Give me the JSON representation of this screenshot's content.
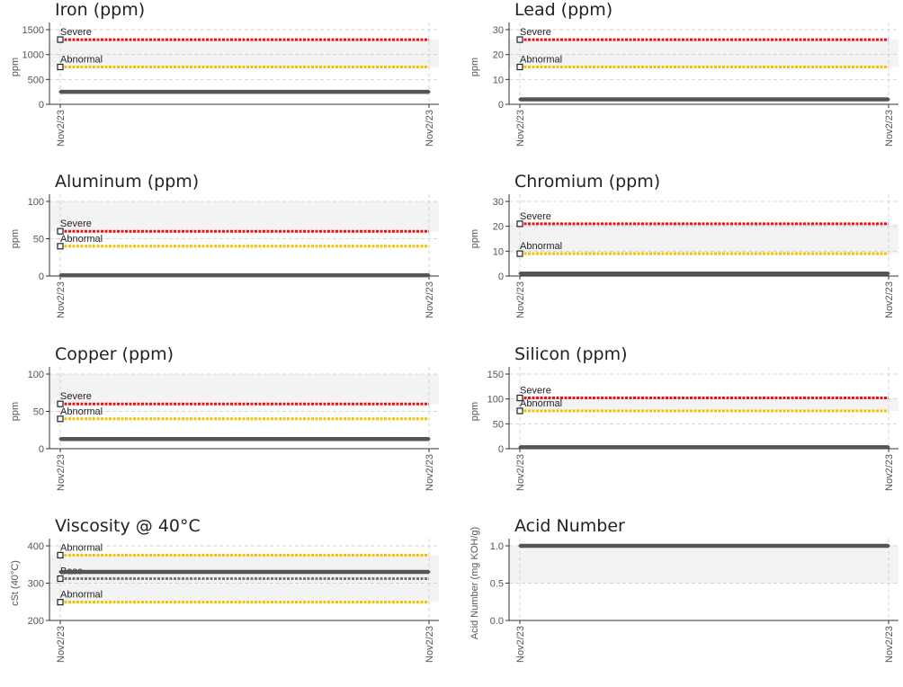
{
  "colors": {
    "severe": "#ee1111",
    "abnormal": "#f2c200",
    "base": "#777777",
    "data": "#555555",
    "band": "#f3f3f3"
  },
  "chart_data": [
    {
      "type": "line",
      "title": "Iron (ppm)",
      "ylabel": "ppm",
      "ylim": [
        0,
        1500
      ],
      "yticks": [
        "0",
        "500",
        "1000",
        "1500"
      ],
      "ytick_values": [
        0,
        500,
        1000,
        1500
      ],
      "x": [
        "Nov2/23",
        "Nov2/23"
      ],
      "series": [
        {
          "values": [
            250,
            250
          ]
        }
      ],
      "limits": [
        {
          "label": "Severe",
          "value": 1300,
          "kind": "severe"
        },
        {
          "label": "Abnormal",
          "value": 750,
          "kind": "abnormal"
        }
      ],
      "band": [
        750,
        1300
      ]
    },
    {
      "type": "line",
      "title": "Lead (ppm)",
      "ylabel": "ppm",
      "ylim": [
        0,
        30
      ],
      "yticks": [
        "0",
        "10",
        "20",
        "30"
      ],
      "ytick_values": [
        0,
        10,
        20,
        30
      ],
      "x": [
        "Nov2/23",
        "Nov2/23"
      ],
      "series": [
        {
          "values": [
            2,
            2
          ]
        }
      ],
      "limits": [
        {
          "label": "Severe",
          "value": 26,
          "kind": "severe"
        },
        {
          "label": "Abnormal",
          "value": 15,
          "kind": "abnormal"
        }
      ],
      "band": [
        15,
        26
      ]
    },
    {
      "type": "line",
      "title": "Aluminum (ppm)",
      "ylabel": "ppm",
      "ylim": [
        0,
        100
      ],
      "yticks": [
        "0",
        "50",
        "100"
      ],
      "ytick_values": [
        0,
        50,
        100
      ],
      "x": [
        "Nov2/23",
        "Nov2/23"
      ],
      "series": [
        {
          "values": [
            1,
            1
          ]
        }
      ],
      "limits": [
        {
          "label": "Severe",
          "value": 60,
          "kind": "severe"
        },
        {
          "label": "Abnormal",
          "value": 40,
          "kind": "abnormal"
        }
      ],
      "band": [
        60,
        100
      ]
    },
    {
      "type": "line",
      "title": "Chromium (ppm)",
      "ylabel": "ppm",
      "ylim": [
        0,
        30
      ],
      "yticks": [
        "0",
        "10",
        "20",
        "30"
      ],
      "ytick_values": [
        0,
        10,
        20,
        30
      ],
      "x": [
        "Nov2/23",
        "Nov2/23"
      ],
      "series": [
        {
          "values": [
            1,
            1
          ]
        }
      ],
      "limits": [
        {
          "label": "Severe",
          "value": 21,
          "kind": "severe"
        },
        {
          "label": "Abnormal",
          "value": 9,
          "kind": "abnormal"
        }
      ],
      "band": [
        9,
        21
      ]
    },
    {
      "type": "line",
      "title": "Copper (ppm)",
      "ylabel": "ppm",
      "ylim": [
        0,
        100
      ],
      "yticks": [
        "0",
        "50",
        "100"
      ],
      "ytick_values": [
        0,
        50,
        100
      ],
      "x": [
        "Nov2/23",
        "Nov2/23"
      ],
      "series": [
        {
          "values": [
            13,
            13
          ]
        }
      ],
      "limits": [
        {
          "label": "Severe",
          "value": 60,
          "kind": "severe"
        },
        {
          "label": "Abnormal",
          "value": 40,
          "kind": "abnormal"
        }
      ],
      "band": [
        60,
        100
      ]
    },
    {
      "type": "line",
      "title": "Silicon (ppm)",
      "ylabel": "ppm",
      "ylim": [
        0,
        150
      ],
      "yticks": [
        "0",
        "50",
        "100",
        "150"
      ],
      "ytick_values": [
        0,
        50,
        100,
        150
      ],
      "x": [
        "Nov2/23",
        "Nov2/23"
      ],
      "series": [
        {
          "values": [
            3,
            3
          ]
        }
      ],
      "limits": [
        {
          "label": "Severe",
          "value": 102,
          "kind": "severe"
        },
        {
          "label": "Abnormal",
          "value": 76,
          "kind": "abnormal"
        }
      ],
      "band": [
        76,
        102
      ]
    },
    {
      "type": "line",
      "title": "Viscosity @ 40°C",
      "ylabel": "cSt (40°C)",
      "ylim": [
        200,
        400
      ],
      "yticks": [
        "200",
        "300",
        "400"
      ],
      "ytick_values": [
        200,
        300,
        400
      ],
      "x": [
        "Nov2/23",
        "Nov2/23"
      ],
      "series": [
        {
          "values": [
            330,
            330
          ]
        }
      ],
      "limits": [
        {
          "label": "Abnormal",
          "value": 375,
          "kind": "abnormal"
        },
        {
          "label": "Base",
          "value": 312,
          "kind": "base"
        },
        {
          "label": "Abnormal",
          "value": 249,
          "kind": "abnormal"
        }
      ],
      "band": [
        249,
        375
      ]
    },
    {
      "type": "line",
      "title": "Acid Number",
      "ylabel": "Acid Number (mg KOH/g)",
      "ylim": [
        0,
        1
      ],
      "yticks": [
        "0.0",
        "0.5",
        "1.0"
      ],
      "ytick_values": [
        0,
        0.5,
        1
      ],
      "x": [
        "Nov2/23",
        "Nov2/23"
      ],
      "series": [
        {
          "values": [
            1,
            1
          ]
        }
      ],
      "limits": [],
      "band": [
        0.5,
        1
      ]
    }
  ]
}
